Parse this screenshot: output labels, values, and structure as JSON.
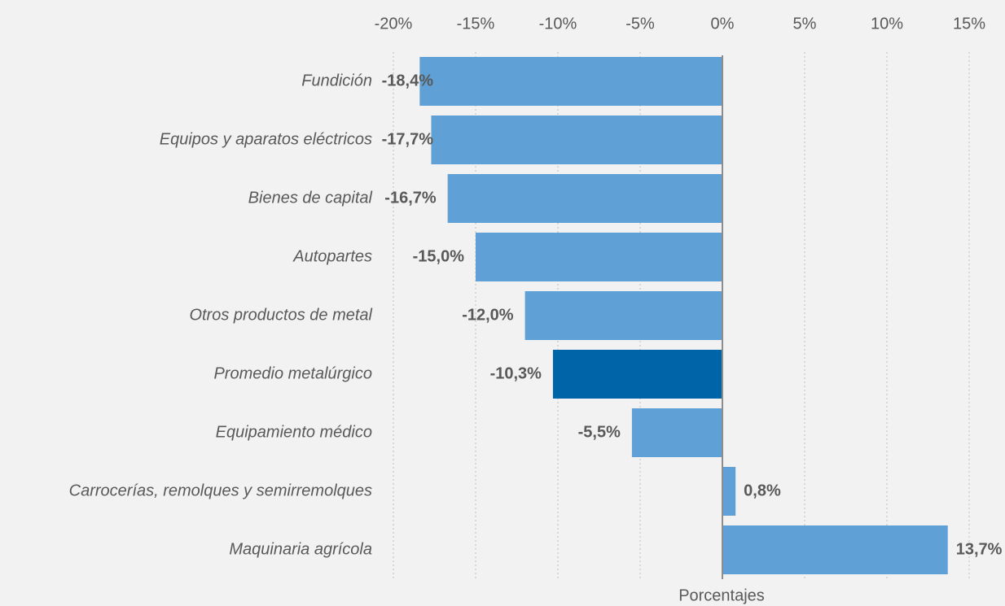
{
  "chart_data": {
    "type": "bar",
    "orientation": "horizontal",
    "x_label": "Porcentajes",
    "categories": [
      "Fundición",
      "Equipos y aparatos eléctricos",
      "Bienes de capital",
      "Autopartes",
      "Otros productos de metal",
      "Promedio metalúrgico",
      "Equipamiento médico",
      "Carrocerías, remolques y semirremolques",
      "Maquinaria agrícola"
    ],
    "values": [
      -18.4,
      -17.7,
      -16.7,
      -15.0,
      -12.0,
      -10.3,
      -5.5,
      0.8,
      13.7
    ],
    "value_labels": [
      "-18,4%",
      "-17,7%",
      "-16,7%",
      "-15,0%",
      "-12,0%",
      "-10,3%",
      "-5,5%",
      "0,8%",
      "13,7%"
    ],
    "colors": [
      "#5fa0d7",
      "#5fa0d7",
      "#5fa0d7",
      "#5fa0d7",
      "#5fa0d7",
      "#0064a8",
      "#5fa0d7",
      "#5fa0d7",
      "#5fa0d7"
    ],
    "xlim": [
      -20,
      15
    ],
    "xticks": [
      {
        "value": -20,
        "label": "-20%"
      },
      {
        "value": -15,
        "label": "-15%"
      },
      {
        "value": -10,
        "label": "-10%"
      },
      {
        "value": -5,
        "label": "-5%"
      },
      {
        "value": 0,
        "label": "0%"
      },
      {
        "value": 5,
        "label": "5%"
      },
      {
        "value": 10,
        "label": "10%"
      },
      {
        "value": 15,
        "label": "15%"
      }
    ],
    "grid": true
  }
}
